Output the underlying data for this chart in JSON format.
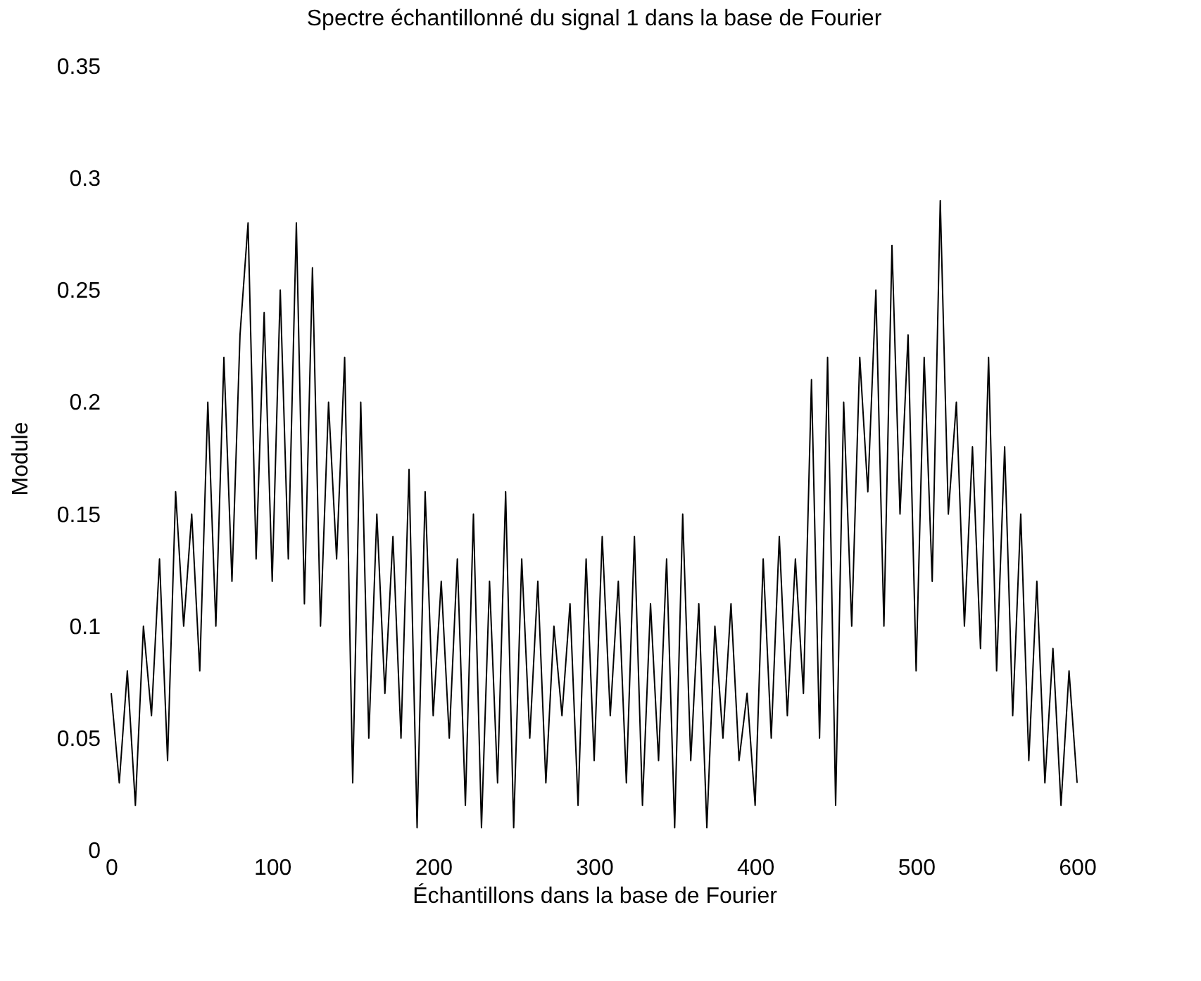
{
  "chart_data": {
    "type": "line",
    "title": "Spectre échantillonné du signal 1 dans la base de Fourier",
    "xlabel": "Échantillons dans la base de Fourier",
    "ylabel": "Module",
    "x": [
      0,
      5,
      10,
      15,
      20,
      25,
      30,
      35,
      40,
      45,
      50,
      55,
      60,
      65,
      70,
      75,
      80,
      85,
      90,
      95,
      100,
      105,
      110,
      115,
      120,
      125,
      130,
      135,
      140,
      145,
      150,
      155,
      160,
      165,
      170,
      175,
      180,
      185,
      190,
      195,
      200,
      205,
      210,
      215,
      220,
      225,
      230,
      235,
      240,
      245,
      250,
      255,
      260,
      265,
      270,
      275,
      280,
      285,
      290,
      295,
      300,
      305,
      310,
      315,
      320,
      325,
      330,
      335,
      340,
      345,
      350,
      355,
      360,
      365,
      370,
      375,
      380,
      385,
      390,
      395,
      400,
      405,
      410,
      415,
      420,
      425,
      430,
      435,
      440,
      445,
      450,
      455,
      460,
      465,
      470,
      475,
      480,
      485,
      490,
      495,
      500,
      505,
      510,
      515,
      520,
      525,
      530,
      535,
      540,
      545,
      550,
      555,
      560,
      565,
      570,
      575,
      580,
      585,
      590,
      595,
      600
    ],
    "series": [
      {
        "color": "#000000",
        "values": [
          0.07,
          0.03,
          0.08,
          0.02,
          0.1,
          0.06,
          0.13,
          0.04,
          0.16,
          0.1,
          0.15,
          0.08,
          0.2,
          0.1,
          0.22,
          0.12,
          0.23,
          0.28,
          0.13,
          0.24,
          0.12,
          0.25,
          0.13,
          0.28,
          0.11,
          0.26,
          0.1,
          0.2,
          0.13,
          0.22,
          0.03,
          0.2,
          0.05,
          0.15,
          0.07,
          0.14,
          0.05,
          0.17,
          0.01,
          0.16,
          0.06,
          0.12,
          0.05,
          0.13,
          0.02,
          0.15,
          0.01,
          0.12,
          0.03,
          0.16,
          0.01,
          0.13,
          0.05,
          0.12,
          0.03,
          0.1,
          0.06,
          0.11,
          0.02,
          0.13,
          0.04,
          0.14,
          0.06,
          0.12,
          0.03,
          0.14,
          0.02,
          0.11,
          0.04,
          0.13,
          0.01,
          0.15,
          0.04,
          0.11,
          0.01,
          0.1,
          0.05,
          0.11,
          0.04,
          0.07,
          0.02,
          0.13,
          0.05,
          0.14,
          0.06,
          0.13,
          0.07,
          0.21,
          0.05,
          0.22,
          0.02,
          0.2,
          0.1,
          0.22,
          0.16,
          0.25,
          0.1,
          0.27,
          0.15,
          0.23,
          0.08,
          0.22,
          0.12,
          0.29,
          0.15,
          0.2,
          0.1,
          0.18,
          0.09,
          0.22,
          0.08,
          0.18,
          0.06,
          0.15,
          0.04,
          0.12,
          0.03,
          0.09,
          0.02,
          0.08,
          0.03
        ]
      }
    ],
    "xlim": [
      0,
      600
    ],
    "xticks": [
      0,
      100,
      200,
      300,
      400,
      500,
      600
    ],
    "ylim": [
      0,
      0.35
    ],
    "yticks": [
      0,
      0.05,
      0.1,
      0.15,
      0.2,
      0.25,
      0.3,
      0.35
    ],
    "grid": false,
    "marker": "none",
    "line_style": "solid"
  }
}
